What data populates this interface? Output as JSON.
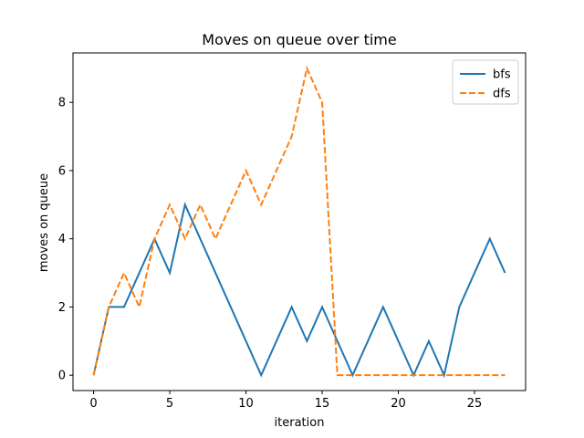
{
  "chart_data": {
    "type": "line",
    "title": "Moves on queue over time",
    "xlabel": "iteration",
    "ylabel": "moves on queue",
    "xlim": [
      -1.35,
      28.35
    ],
    "ylim": [
      -0.45,
      9.45
    ],
    "xticks": [
      0,
      5,
      10,
      15,
      20,
      25
    ],
    "yticks": [
      0,
      2,
      4,
      6,
      8
    ],
    "grid": false,
    "legend_position": "top-right",
    "series": [
      {
        "name": "bfs",
        "color": "#1f77b4",
        "style": "solid",
        "x": [
          0,
          1,
          2,
          3,
          4,
          5,
          6,
          7,
          8,
          9,
          10,
          11,
          12,
          13,
          14,
          15,
          16,
          17,
          18,
          19,
          20,
          21,
          22,
          23,
          24,
          25,
          26,
          27
        ],
        "y": [
          0,
          2,
          2,
          3,
          4,
          3,
          5,
          4,
          3,
          2,
          1,
          0,
          1,
          2,
          1,
          2,
          1,
          0,
          1,
          2,
          1,
          0,
          1,
          0,
          2,
          3,
          4,
          3
        ]
      },
      {
        "name": "dfs",
        "color": "#ff7f0e",
        "style": "dashed",
        "x": [
          0,
          1,
          2,
          3,
          4,
          5,
          6,
          7,
          8,
          9,
          10,
          11,
          12,
          13,
          14,
          15,
          16,
          17,
          18,
          19,
          20,
          21,
          22,
          23,
          24,
          25,
          26,
          27
        ],
        "y": [
          0,
          2,
          3,
          2,
          4,
          5,
          4,
          5,
          4,
          5,
          6,
          5,
          6,
          7,
          9,
          8,
          0,
          0,
          0,
          0,
          0,
          0,
          0,
          0,
          0,
          0,
          0,
          0
        ]
      }
    ]
  }
}
